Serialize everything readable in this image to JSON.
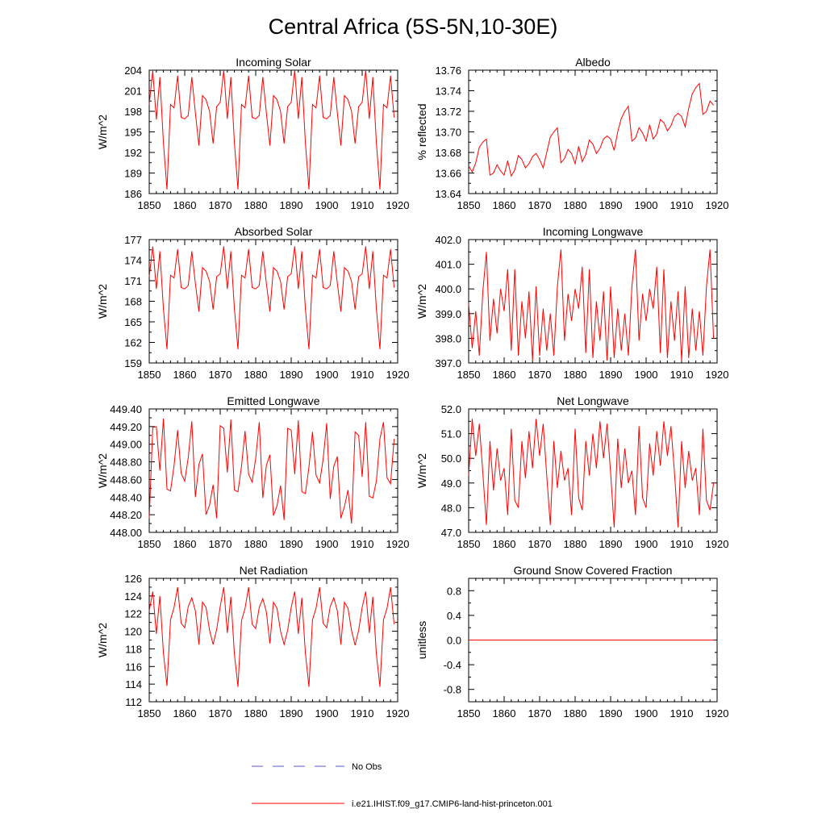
{
  "figure_title": "Central Africa (5S-5N,10-30E)",
  "legend": [
    {
      "label": "No Obs",
      "color": "#5a5ad2",
      "style": "dashed"
    },
    {
      "label": "i.e21.IHIST.f09_g17.CMIP6-land-hist-princeton.001",
      "color": "#ff0000",
      "style": "solid"
    }
  ],
  "chart_data": [
    {
      "type": "line",
      "title": "Incoming Solar",
      "ylabel": "W/m^2",
      "xlim": [
        1850,
        1920
      ],
      "ylim": [
        186,
        204
      ],
      "xticks": [
        "1850",
        "1860",
        "1870",
        "1880",
        "1890",
        "1900",
        "1910",
        "1920"
      ],
      "yticks": [
        "186",
        "189",
        "192",
        "195",
        "198",
        "201",
        "204"
      ],
      "x_start": 1850,
      "series": [
        {
          "color": "#ff0000",
          "values": [
            199.0,
            203.9,
            196.8,
            203.0,
            193.4,
            186.6,
            199.0,
            198.5,
            203.2,
            197.1,
            196.9,
            197.4,
            203.0,
            197.8,
            193.0,
            200.3,
            199.7,
            198.0,
            193.3,
            198.7,
            199.3,
            204.0,
            196.9,
            203.0,
            193.4,
            186.6,
            199.0,
            198.5,
            203.2,
            197.1,
            196.9,
            197.4,
            203.0,
            197.8,
            193.0,
            200.3,
            199.7,
            198.0,
            193.3,
            198.7,
            199.3,
            204.0,
            196.9,
            203.0,
            193.4,
            186.6,
            199.0,
            198.5,
            203.2,
            197.1,
            196.9,
            197.4,
            203.0,
            197.8,
            193.0,
            200.3,
            199.7,
            198.0,
            193.3,
            198.7,
            199.3,
            204.0,
            196.9,
            203.0,
            193.4,
            186.6,
            199.0,
            198.5,
            203.2,
            197.1
          ]
        }
      ]
    },
    {
      "type": "line",
      "title": "Albedo",
      "ylabel": "% reflected",
      "xlim": [
        1850,
        1920
      ],
      "ylim": [
        13.64,
        13.76
      ],
      "xticks": [
        "1850",
        "1860",
        "1870",
        "1880",
        "1890",
        "1900",
        "1910",
        "1920"
      ],
      "yticks": [
        "13.64",
        "13.66",
        "13.68",
        "13.70",
        "13.72",
        "13.74",
        "13.76"
      ],
      "x_start": 1850,
      "series": [
        {
          "color": "#ff0000",
          "values": [
            13.667,
            13.661,
            13.67,
            13.685,
            13.69,
            13.693,
            13.658,
            13.66,
            13.668,
            13.662,
            13.658,
            13.672,
            13.657,
            13.663,
            13.677,
            13.673,
            13.665,
            13.669,
            13.676,
            13.679,
            13.673,
            13.665,
            13.68,
            13.695,
            13.7,
            13.704,
            13.67,
            13.674,
            13.683,
            13.679,
            13.669,
            13.686,
            13.671,
            13.678,
            13.692,
            13.688,
            13.679,
            13.684,
            13.693,
            13.696,
            13.693,
            13.682,
            13.7,
            13.713,
            13.72,
            13.725,
            13.691,
            13.694,
            13.704,
            13.699,
            13.691,
            13.707,
            13.693,
            13.698,
            13.712,
            13.709,
            13.701,
            13.706,
            13.715,
            13.718,
            13.715,
            13.705,
            13.723,
            13.737,
            13.743,
            13.747,
            13.717,
            13.72,
            13.73,
            13.726
          ]
        }
      ]
    },
    {
      "type": "line",
      "title": "Absorbed Solar",
      "ylabel": "W/m^2",
      "xlim": [
        1850,
        1920
      ],
      "ylim": [
        159,
        177
      ],
      "xticks": [
        "1850",
        "1860",
        "1870",
        "1880",
        "1890",
        "1900",
        "1910",
        "1920"
      ],
      "yticks": [
        "159",
        "162",
        "165",
        "168",
        "171",
        "174",
        "177"
      ],
      "x_start": 1850,
      "series": [
        {
          "color": "#ff0000",
          "values": [
            171.6,
            176.0,
            169.8,
            175.3,
            166.9,
            161.0,
            171.8,
            171.4,
            175.6,
            170.0,
            169.8,
            170.3,
            175.3,
            170.6,
            166.5,
            172.9,
            172.4,
            170.9,
            166.8,
            171.6,
            172.0,
            176.0,
            169.8,
            175.3,
            166.9,
            161.0,
            171.8,
            171.4,
            175.6,
            170.0,
            169.8,
            170.3,
            175.3,
            170.6,
            166.5,
            172.9,
            172.4,
            170.9,
            166.8,
            171.6,
            172.0,
            176.0,
            169.8,
            175.3,
            166.9,
            161.0,
            171.8,
            171.4,
            175.6,
            170.0,
            169.8,
            170.3,
            175.3,
            170.6,
            166.5,
            172.9,
            172.4,
            170.9,
            166.8,
            171.6,
            172.0,
            176.0,
            169.8,
            175.3,
            166.9,
            161.0,
            171.8,
            171.4,
            175.6,
            170.0
          ]
        }
      ]
    },
    {
      "type": "line",
      "title": "Incoming Longwave",
      "ylabel": "W/m^2",
      "xlim": [
        1850,
        1920
      ],
      "ylim": [
        397.0,
        402.0
      ],
      "xticks": [
        "1850",
        "1860",
        "1870",
        "1880",
        "1890",
        "1900",
        "1910",
        "1920"
      ],
      "yticks": [
        "397.0",
        "398.0",
        "399.0",
        "400.0",
        "401.0",
        "402.0"
      ],
      "x_start": 1850,
      "series": [
        {
          "color": "#ff0000",
          "values": [
            399.4,
            397.6,
            399.1,
            397.3,
            399.9,
            401.5,
            397.9,
            399.6,
            398.2,
            400.0,
            399.1,
            400.8,
            397.5,
            400.8,
            397.3,
            399.5,
            398.0,
            399.9,
            397.1,
            400.1,
            397.3,
            399.2,
            397.5,
            399.0,
            397.3,
            400.1,
            401.6,
            397.9,
            399.8,
            398.7,
            400.0,
            399.2,
            400.9,
            397.4,
            400.8,
            397.2,
            399.5,
            397.9,
            399.9,
            397.1,
            400.1,
            397.2,
            399.2,
            397.5,
            399.0,
            397.3,
            400.1,
            401.6,
            397.9,
            399.8,
            398.7,
            400.0,
            399.2,
            400.9,
            397.4,
            400.8,
            397.2,
            399.5,
            397.9,
            399.9,
            397.1,
            400.1,
            397.2,
            399.2,
            397.5,
            399.1,
            397.3,
            400.1,
            401.6,
            398.0
          ]
        }
      ]
    },
    {
      "type": "line",
      "title": "Emitted Longwave",
      "ylabel": "W/m^2",
      "xlim": [
        1850,
        1920
      ],
      "ylim": [
        448.0,
        449.4
      ],
      "xticks": [
        "1850",
        "1860",
        "1870",
        "1880",
        "1890",
        "1900",
        "1910",
        "1920"
      ],
      "yticks": [
        "448.00",
        "448.20",
        "448.40",
        "448.60",
        "448.80",
        "449.00",
        "449.20",
        "449.40"
      ],
      "x_start": 1850,
      "series": [
        {
          "color": "#ff0000",
          "values": [
            448.16,
            449.19,
            449.2,
            448.7,
            449.29,
            448.49,
            448.47,
            448.76,
            449.16,
            448.67,
            448.58,
            448.85,
            449.26,
            448.4,
            448.77,
            448.89,
            448.2,
            448.31,
            448.54,
            448.16,
            449.21,
            449.18,
            448.68,
            449.28,
            448.48,
            448.46,
            448.75,
            449.15,
            448.66,
            448.57,
            448.84,
            449.25,
            448.39,
            448.76,
            448.88,
            448.19,
            448.3,
            448.53,
            448.14,
            449.18,
            449.16,
            448.66,
            449.27,
            448.46,
            448.44,
            448.74,
            449.14,
            448.65,
            448.56,
            448.83,
            449.24,
            448.38,
            448.75,
            448.86,
            448.16,
            448.29,
            448.48,
            448.1,
            449.14,
            449.1,
            448.63,
            449.25,
            448.41,
            448.39,
            448.58,
            449.06,
            449.25,
            448.62,
            448.55,
            449.06
          ]
        }
      ]
    },
    {
      "type": "line",
      "title": "Net Longwave",
      "ylabel": "W/m^2",
      "xlim": [
        1850,
        1920
      ],
      "ylim": [
        47.0,
        52.0
      ],
      "xticks": [
        "1850",
        "1860",
        "1870",
        "1880",
        "1890",
        "1900",
        "1910",
        "1920"
      ],
      "yticks": [
        "47.0",
        "48.0",
        "49.0",
        "50.0",
        "51.0",
        "52.0"
      ],
      "x_start": 1850,
      "series": [
        {
          "color": "#ff0000",
          "values": [
            49.3,
            51.6,
            50.1,
            51.4,
            49.4,
            47.3,
            50.7,
            48.7,
            50.4,
            49.1,
            49.6,
            47.7,
            51.2,
            48.3,
            48.0,
            50.7,
            49.2,
            51.1,
            49.6,
            51.6,
            50.1,
            51.4,
            49.3,
            47.3,
            50.7,
            48.8,
            50.3,
            49.1,
            49.6,
            47.7,
            51.2,
            48.4,
            47.9,
            50.7,
            49.3,
            51.0,
            49.6,
            51.5,
            50.0,
            51.4,
            49.4,
            47.2,
            50.8,
            48.8,
            50.4,
            49.0,
            49.5,
            47.7,
            51.3,
            48.4,
            48.0,
            50.6,
            49.3,
            51.1,
            49.7,
            51.5,
            50.1,
            51.3,
            49.4,
            47.2,
            50.7,
            48.8,
            50.3,
            49.1,
            49.6,
            47.7,
            51.2,
            48.3,
            47.9,
            49.0
          ]
        }
      ]
    },
    {
      "type": "line",
      "title": "Net Radiation",
      "ylabel": "W/m^2",
      "xlim": [
        1850,
        1920
      ],
      "ylim": [
        112,
        126
      ],
      "xticks": [
        "1850",
        "1860",
        "1870",
        "1880",
        "1890",
        "1900",
        "1910",
        "1920"
      ],
      "yticks": [
        "112",
        "114",
        "116",
        "118",
        "120",
        "122",
        "124",
        "126"
      ],
      "x_start": 1850,
      "series": [
        {
          "color": "#ff0000",
          "values": [
            122.3,
            124.5,
            119.7,
            124.0,
            117.5,
            113.8,
            121.3,
            122.7,
            125.0,
            120.9,
            120.4,
            122.8,
            123.8,
            122.3,
            118.5,
            123.3,
            122.7,
            120.1,
            118.5,
            120.2,
            122.8,
            125.0,
            119.8,
            123.9,
            117.4,
            113.7,
            121.2,
            122.6,
            125.0,
            120.8,
            120.3,
            122.7,
            123.7,
            122.2,
            118.6,
            123.3,
            122.6,
            120.0,
            118.5,
            120.1,
            122.7,
            124.5,
            119.7,
            123.8,
            117.5,
            113.7,
            121.3,
            122.6,
            125.0,
            120.9,
            120.4,
            122.8,
            123.8,
            122.3,
            118.5,
            123.3,
            122.6,
            120.1,
            118.4,
            120.1,
            122.7,
            124.5,
            119.8,
            123.9,
            117.4,
            113.7,
            121.3,
            122.6,
            125.0,
            120.8
          ]
        }
      ]
    },
    {
      "type": "line",
      "title": "Ground Snow Covered Fraction",
      "ylabel": "unitless",
      "xlim": [
        1850,
        1920
      ],
      "ylim": [
        -1.0,
        1.0
      ],
      "xticks": [
        "1850",
        "1860",
        "1870",
        "1880",
        "1890",
        "1900",
        "1910",
        "1920"
      ],
      "yticks": [
        "-0.8",
        "-0.4",
        "0.0",
        "0.4",
        "0.8"
      ],
      "ytick_values": [
        -0.8,
        -0.4,
        0.0,
        0.4,
        0.8
      ],
      "x_start": 1850,
      "series": [
        {
          "color": "#ff0000",
          "values": [
            0,
            0,
            0,
            0,
            0,
            0,
            0,
            0,
            0,
            0,
            0,
            0,
            0,
            0,
            0,
            0,
            0,
            0,
            0,
            0,
            0,
            0,
            0,
            0,
            0,
            0,
            0,
            0,
            0,
            0,
            0,
            0,
            0,
            0,
            0,
            0,
            0,
            0,
            0,
            0,
            0,
            0,
            0,
            0,
            0,
            0,
            0,
            0,
            0,
            0,
            0,
            0,
            0,
            0,
            0,
            0,
            0,
            0,
            0,
            0,
            0,
            0,
            0,
            0,
            0,
            0,
            0,
            0,
            0,
            0
          ]
        }
      ]
    }
  ]
}
